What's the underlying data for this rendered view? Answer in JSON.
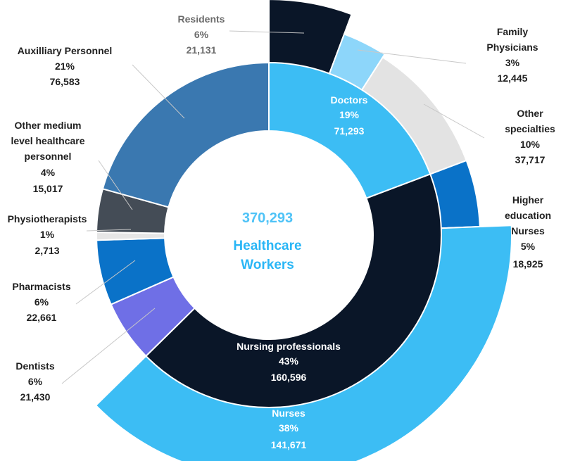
{
  "chart_data": {
    "type": "pie",
    "variant": "nested-donut",
    "center": {
      "value": "370,293",
      "label_lines": [
        "Healthcare",
        "Workers"
      ]
    },
    "inner_ring": [
      {
        "name": "Doctors",
        "percent": "19%",
        "value": 71293,
        "value_text": "71,293",
        "color": "#3cbdf4"
      },
      {
        "name": "Nursing professionals",
        "percent": "43%",
        "value": 160596,
        "value_text": "160,596",
        "color": "#0a1628"
      },
      {
        "name": "Dentists",
        "percent": "6%",
        "value": 21430,
        "value_text": "21,430",
        "color": "#6f6fe6"
      },
      {
        "name": "Pharmacists",
        "percent": "6%",
        "value": 22661,
        "value_text": "22,661",
        "color": "#0a72c8"
      },
      {
        "name": "Physiotherapists",
        "percent": "1%",
        "value": 2713,
        "value_text": "2,713",
        "color": "#e6e6e6"
      },
      {
        "name_lines": [
          "Other medium",
          "level healthcare",
          "personnel"
        ],
        "percent": "4%",
        "value": 15017,
        "value_text": "15,017",
        "color": "#444c56"
      },
      {
        "name": "Auxilliary Personnel",
        "percent": "21%",
        "value": 76583,
        "value_text": "76,583",
        "color": "#3a78b0"
      }
    ],
    "outer_ring": [
      {
        "name": "Residents",
        "percent": "6%",
        "value": 21131,
        "value_text": "21,131",
        "color": "#0a1628"
      },
      {
        "name_lines": [
          "Family",
          "Physicians"
        ],
        "percent": "3%",
        "value": 12445,
        "value_text": "12,445",
        "color": "#8dd6fa"
      },
      {
        "name_lines": [
          "Other",
          "specialties"
        ],
        "percent": "10%",
        "value": 37717,
        "value_text": "37,717",
        "color": "#e3e3e3"
      },
      {
        "name_lines": [
          "Higher",
          "education",
          "Nurses"
        ],
        "percent": "5%",
        "value": 18925,
        "value_text": "18,925",
        "color": "#0a72c8"
      },
      {
        "name": "Nurses",
        "percent": "38%",
        "value": 141671,
        "value_text": "141,671",
        "color": "#3cbdf4"
      }
    ]
  }
}
